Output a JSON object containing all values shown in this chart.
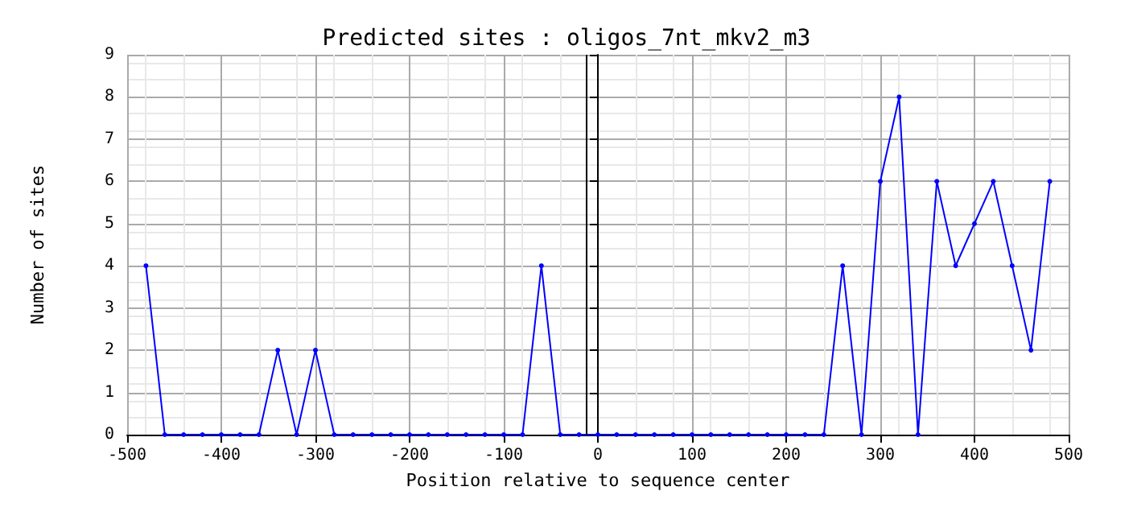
{
  "chart_data": {
    "type": "line",
    "title": "Predicted sites : oligos_7nt_mkv2_m3",
    "xlabel": "Position relative to sequence center",
    "ylabel": "Number of sites",
    "x": [
      -480,
      -460,
      -440,
      -420,
      -400,
      -380,
      -360,
      -340,
      -320,
      -300,
      -280,
      -260,
      -240,
      -220,
      -200,
      -180,
      -160,
      -140,
      -120,
      -100,
      -80,
      -60,
      -40,
      -20,
      0,
      20,
      40,
      60,
      80,
      100,
      120,
      140,
      160,
      180,
      200,
      220,
      240,
      260,
      280,
      300,
      320,
      340,
      360,
      380,
      400,
      420,
      440,
      460,
      480
    ],
    "series": [
      {
        "color": "#0000ff",
        "values": [
          4,
          0,
          0,
          0,
          0,
          0,
          0,
          2,
          0,
          2,
          0,
          0,
          0,
          0,
          0,
          0,
          0,
          0,
          0,
          0,
          0,
          4,
          0,
          0,
          0,
          0,
          0,
          0,
          0,
          0,
          0,
          0,
          0,
          0,
          0,
          0,
          0,
          4,
          0,
          6,
          8,
          0,
          6,
          4,
          5,
          6,
          4,
          2,
          6
        ]
      }
    ],
    "xlim": [
      -500,
      500
    ],
    "xticks": [
      -500,
      -400,
      -300,
      -200,
      -100,
      0,
      100,
      200,
      300,
      400,
      500
    ],
    "ylim": [
      0,
      9
    ],
    "yticks": [
      0,
      1,
      2,
      3,
      4,
      5,
      6,
      7,
      8,
      9
    ],
    "ref_lines": [
      {
        "axis": "x",
        "value": -12,
        "color": "#000000"
      }
    ],
    "grid": true,
    "marker": "circle",
    "line_style": "solid"
  }
}
